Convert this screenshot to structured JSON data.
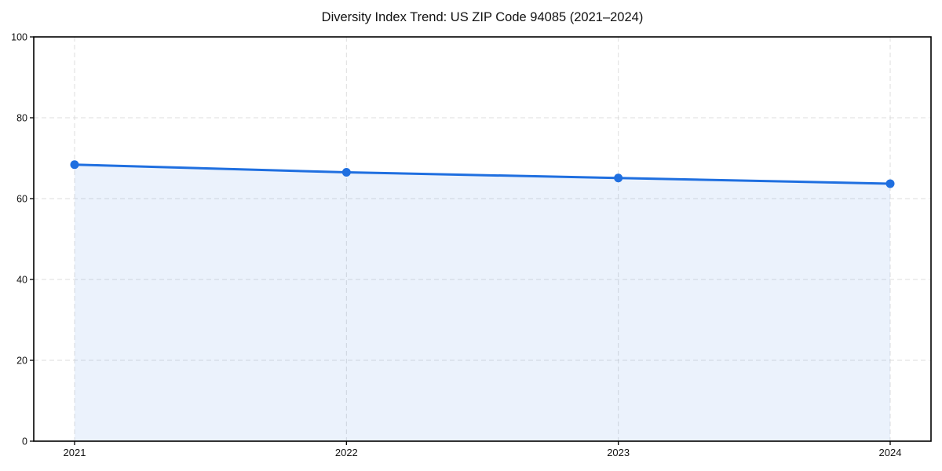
{
  "figure": {
    "background": "#ffffff"
  },
  "chart_data": {
    "type": "line",
    "title": "Diversity Index Trend: US ZIP Code 94085 (2021–2024)",
    "categories": [
      "2021",
      "2022",
      "2023",
      "2024"
    ],
    "series": [
      {
        "name": "Diversity Index",
        "values": [
          68.4,
          66.5,
          65.1,
          63.7
        ]
      }
    ],
    "xlabel": "",
    "ylabel": "",
    "ylim": [
      0,
      100
    ],
    "yticks": [
      0,
      20,
      40,
      60,
      80,
      100
    ],
    "grid": true,
    "grid_style": "dashed",
    "legend": false,
    "area_fill": true,
    "marker": "circle",
    "colors": {
      "line": "#1f6fe0",
      "marker": "#1f6fe0",
      "area_fill": "rgba(31,111,224,0.09)",
      "gridline": "#d9d9d9",
      "axis_border": "#000000",
      "tick_label": "#111111"
    }
  }
}
